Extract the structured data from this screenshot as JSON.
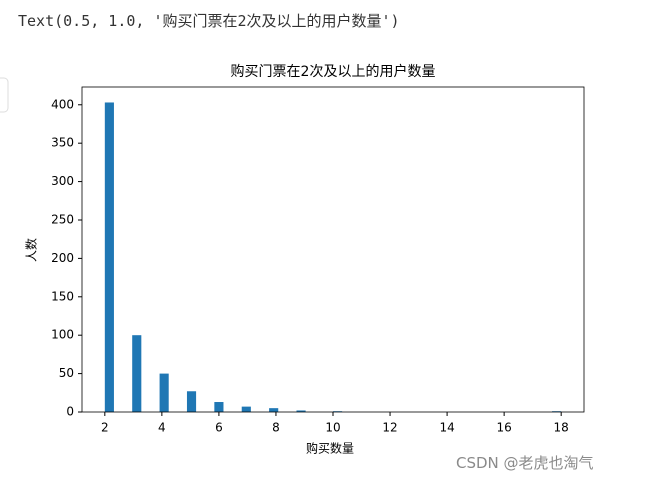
{
  "output_text": "Text(0.5, 1.0, '购买门票在2次及以上的用户数量')",
  "watermark": "CSDN @老虎也淘气",
  "chart_data": {
    "type": "histogram",
    "title": "购买门票在2次及以上的用户数量",
    "x_label": "购买数量",
    "y_label": "人数",
    "color": "#1f77b4",
    "bins": [
      2,
      2.32,
      2.64,
      2.96,
      3.28,
      3.6,
      3.92,
      4.24,
      4.56,
      4.88,
      5.2,
      5.52,
      5.84,
      6.16,
      6.48,
      6.8,
      7.12,
      7.44,
      7.76,
      8.08,
      8.4,
      8.72,
      9.04,
      9.36,
      9.68,
      10,
      10.32,
      10.64,
      10.96,
      11.28,
      11.6,
      11.92,
      12.24,
      12.56,
      12.88,
      13.2,
      13.52,
      13.84,
      14.16,
      14.48,
      14.8,
      15.12,
      15.44,
      15.76,
      16.08,
      16.4,
      16.72,
      17.04,
      17.36,
      17.68,
      18
    ],
    "values": [
      403,
      0,
      0,
      100,
      0,
      0,
      50,
      0,
      0,
      27,
      0,
      0,
      13,
      0,
      0,
      7,
      0,
      0,
      5,
      0,
      0,
      2,
      0,
      0,
      0,
      1,
      0,
      0,
      0,
      0,
      0,
      0,
      0,
      0,
      0,
      0,
      0,
      0,
      0,
      0,
      0,
      0,
      0,
      0,
      0,
      0,
      0,
      0,
      0,
      1
    ],
    "xlim": [
      1.2,
      18.8
    ],
    "ylim": [
      0,
      423.15
    ],
    "xticks": [
      2,
      4,
      6,
      8,
      10,
      12,
      14,
      16,
      18
    ],
    "yticks": [
      0,
      50,
      100,
      150,
      200,
      250,
      300,
      350,
      400
    ]
  }
}
